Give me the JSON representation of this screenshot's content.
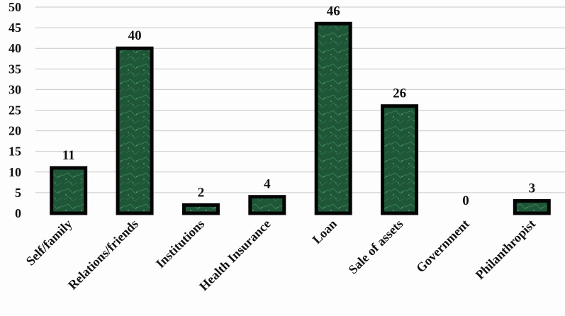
{
  "chart_data": {
    "type": "bar",
    "title": "",
    "xlabel": "",
    "ylabel": "",
    "categories": [
      "Self/family",
      "Relations/friends",
      "Institutions",
      "Health Insurance",
      "Loan",
      "Sale of assets",
      "Government",
      "Philanthropist"
    ],
    "values": [
      11,
      40,
      2,
      4,
      46,
      26,
      0,
      3
    ],
    "ylim": [
      0,
      50
    ],
    "yticks": [
      0,
      5,
      10,
      15,
      20,
      25,
      30,
      35,
      40,
      45,
      50
    ],
    "grid": true,
    "legend": "none",
    "colors": {
      "bar_fill": "#1f5a3a",
      "bar_texture_light": "#3f8a5f",
      "bar_edge": "#050505",
      "gridline": "#c8c8c8"
    }
  }
}
